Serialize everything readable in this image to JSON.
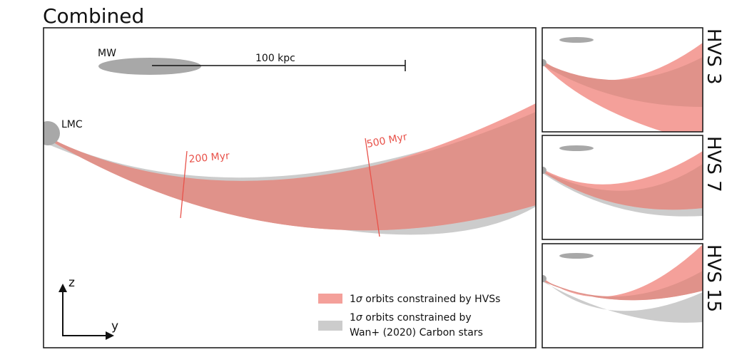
{
  "chart_data": [
    {
      "type": "area",
      "panel": "combined",
      "title": "Combined",
      "labels": {
        "mw": "MW",
        "lmc": "LMC",
        "scale_bar": "100 kpc",
        "time_marker_1": "200 Myr",
        "time_marker_2": "500 Myr",
        "axis_z": "z",
        "axis_y": "y"
      },
      "series": [
        {
          "name": "1σ orbits constrained by HVSs",
          "color": "#f4a09a"
        },
        {
          "name": "1σ orbits constrained by Wan+ (2020) Carbon stars",
          "color": "#cccccc"
        }
      ],
      "legend": {
        "hvs_prefix": "1",
        "hvs_sigma": "σ",
        "hvs_text": " orbits constrained by HVSs",
        "carbon_prefix": "1",
        "carbon_sigma": "σ",
        "carbon_line1": " orbits constrained by",
        "carbon_line2": "Wan+ (2020) Carbon stars"
      }
    },
    {
      "type": "area",
      "panel": "HVS 3",
      "title": "HVS 3"
    },
    {
      "type": "area",
      "panel": "HVS 7",
      "title": "HVS 7"
    },
    {
      "type": "area",
      "panel": "HVS 15",
      "title": "HVS 15"
    }
  ],
  "colors": {
    "hvs_band": "#f4a09a",
    "carbon_band": "#cccccc",
    "overlap": "#e0928a",
    "time_marker": "#e8524a",
    "galaxy": "#a8a8a8"
  }
}
